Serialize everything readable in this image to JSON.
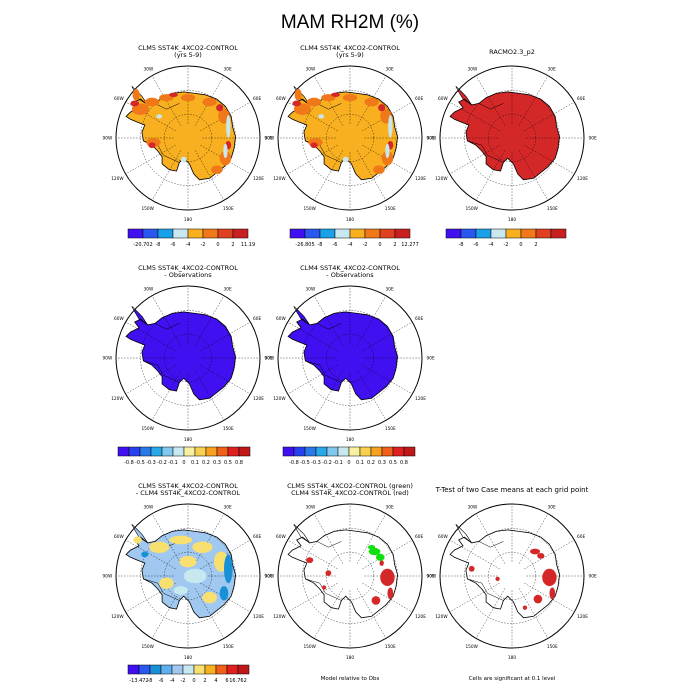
{
  "figure_title": "MAM RH2M (%)",
  "colors": {
    "ocean": "#ffffff",
    "orange": "#f8b020",
    "dark_orange": "#f07818",
    "red": "#d42828",
    "pale": "#c8e8f0",
    "light_blue": "#a0c8f0",
    "blue": "#1890d8",
    "deep_blue": "#4010f0",
    "yellow": "#f8e070",
    "green": "#10e010",
    "coast": "#000000"
  },
  "panels": [
    {
      "id": "p1",
      "title_lines": [
        "CLM5 SST4K_4XCO2-CONTROL",
        "(yrs 5-9)"
      ],
      "fill": "orange",
      "lon_labels": true,
      "colorbar": {
        "labels": [
          "-20.702",
          "-8",
          "-6",
          "-4",
          "-2",
          "0",
          "2",
          "11.19"
        ],
        "colors": [
          "#4010f0",
          "#2858f0",
          "#18a0e8",
          "#c8e8f0",
          "#f8b020",
          "#f07818",
          "#e04020",
          "#c82020"
        ]
      }
    },
    {
      "id": "p2",
      "title_lines": [
        "CLM4 SST4K_4XCO2-CONTROL",
        "(yrs 5-9)"
      ],
      "fill": "orange",
      "lon_labels": true,
      "colorbar": {
        "labels": [
          "-26.805",
          "-8",
          "-6",
          "-4",
          "-2",
          "0",
          "2",
          "12.277"
        ],
        "colors": [
          "#4010f0",
          "#2858f0",
          "#18a0e8",
          "#c8e8f0",
          "#f8b020",
          "#f07818",
          "#e04020",
          "#c82020"
        ]
      }
    },
    {
      "id": "p3",
      "title_lines": [
        "RACMO2.3_p2"
      ],
      "fill": "red",
      "lon_labels": true,
      "colorbar": {
        "labels": [
          "-8",
          "-6",
          "-4",
          "-2",
          "0",
          "2"
        ],
        "colors": [
          "#4010f0",
          "#2858f0",
          "#18a0e8",
          "#c8e8f0",
          "#f8b020",
          "#f07818",
          "#e04020",
          "#c82020"
        ]
      }
    },
    {
      "id": "p4",
      "title_lines": [
        "CLM5 SST4K_4XCO2-CONTROL",
        "- Observations"
      ],
      "fill": "deep_blue",
      "lon_labels": true,
      "colorbar": {
        "labels": [
          "-0.8",
          "-0.5",
          "-0.3",
          "-0.2",
          "-0.1",
          "0",
          "0.1",
          "0.2",
          "0.3",
          "0.5",
          "0.8"
        ],
        "colors": [
          "#4010f0",
          "#2840f0",
          "#2878e8",
          "#28a8e8",
          "#80c8f0",
          "#c8e8f0",
          "#f8f0a0",
          "#f8d050",
          "#f8a020",
          "#f06018",
          "#e02020",
          "#c01818"
        ]
      }
    },
    {
      "id": "p5",
      "title_lines": [
        "CLM4 SST4K_4XCO2-CONTROL",
        "- Observations"
      ],
      "fill": "deep_blue",
      "lon_labels": true,
      "colorbar": {
        "labels": [
          "-0.8",
          "-0.5",
          "-0.3",
          "-0.2",
          "-0.1",
          "0",
          "0.1",
          "0.2",
          "0.3",
          "0.5",
          "0.8"
        ],
        "colors": [
          "#4010f0",
          "#2840f0",
          "#2878e8",
          "#28a8e8",
          "#80c8f0",
          "#c8e8f0",
          "#f8f0a0",
          "#f8d050",
          "#f8a020",
          "#f06018",
          "#e02020",
          "#c01818"
        ]
      }
    },
    {
      "id": "p7",
      "title_lines": [
        "CLM5 SST4K_4XCO2-CONTROL",
        "- CLM4 SST4K_4XCO2-CONTROL"
      ],
      "fill": "light_blue",
      "lon_labels": true,
      "colorbar": {
        "labels": [
          "-13.472",
          "-8",
          "-6",
          "-4",
          "-2",
          "0",
          "2",
          "4",
          "6",
          "16.762"
        ],
        "colors": [
          "#4010f0",
          "#2858f0",
          "#1890d8",
          "#60b0f0",
          "#a0c8f0",
          "#c8e8f0",
          "#f8e070",
          "#f8b020",
          "#f06018",
          "#e02020",
          "#c01818"
        ]
      }
    },
    {
      "id": "p8",
      "title_lines": [
        "CLM5 SST4K_4XCO2-CONTROL (green)",
        "CLM4 SST4K_4XCO2-CONTROL (red)"
      ],
      "fill": "white",
      "lon_labels": true,
      "note": "Model relative to Obs"
    },
    {
      "id": "p9",
      "title_lines": [
        "T-Test of two Case means at each grid point"
      ],
      "fill": "white",
      "lon_labels": true,
      "note": "Cells are significant at 0.1 level"
    }
  ],
  "lon_labels": [
    "30W",
    "30E",
    "60W",
    "60E",
    "90W",
    "90E",
    "120W",
    "120E",
    "150W",
    "150E",
    "180"
  ]
}
